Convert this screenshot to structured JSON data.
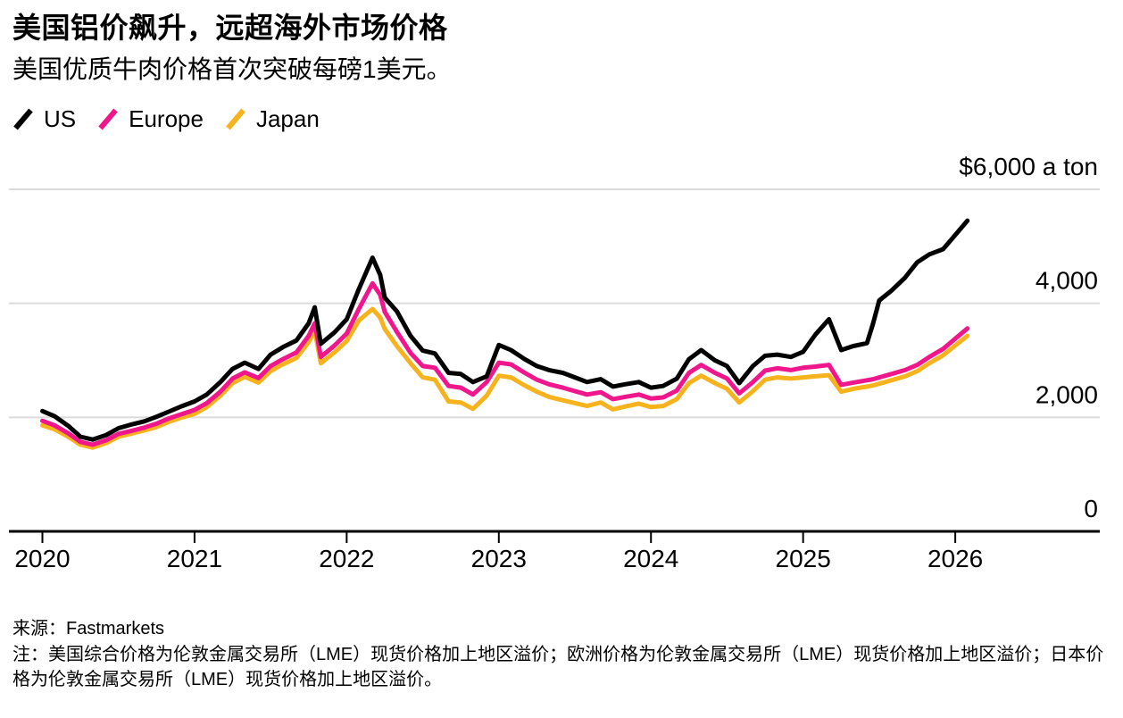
{
  "header": {
    "title": "美国铝价飙升，远超海外市场价格",
    "subtitle": "美国优质牛肉价格首次突破每磅1美元。"
  },
  "chart_data": {
    "type": "line",
    "title": "美国铝价飙升，远超海外市场价格",
    "subtitle": "美国优质牛肉价格首次突破每磅1美元。",
    "unit": "$ a ton",
    "grid": "horizontal",
    "legend_position": "top-left",
    "xlim": [
      2019.78,
      2026.95
    ],
    "ylim": [
      0,
      6000
    ],
    "x_ticks": [
      2020,
      2021,
      2022,
      2023,
      2024,
      2025,
      2026
    ],
    "y_ticks": [
      {
        "value": 0,
        "label": "0"
      },
      {
        "value": 2000,
        "label": "2,000"
      },
      {
        "value": 4000,
        "label": "4,000"
      },
      {
        "value": 6000,
        "label": "$6,000 a ton"
      }
    ],
    "x": [
      2020.0,
      2020.08,
      2020.17,
      2020.25,
      2020.33,
      2020.42,
      2020.5,
      2020.58,
      2020.67,
      2020.75,
      2020.83,
      2020.92,
      2021.0,
      2021.08,
      2021.17,
      2021.25,
      2021.33,
      2021.42,
      2021.5,
      2021.58,
      2021.67,
      2021.75,
      2021.79,
      2021.83,
      2021.92,
      2022.0,
      2022.08,
      2022.17,
      2022.22,
      2022.25,
      2022.33,
      2022.42,
      2022.5,
      2022.58,
      2022.67,
      2022.75,
      2022.83,
      2022.92,
      2023.0,
      2023.08,
      2023.17,
      2023.25,
      2023.33,
      2023.42,
      2023.5,
      2023.58,
      2023.67,
      2023.75,
      2023.83,
      2023.92,
      2024.0,
      2024.08,
      2024.17,
      2024.25,
      2024.33,
      2024.42,
      2024.5,
      2024.58,
      2024.67,
      2024.75,
      2024.83,
      2024.92,
      2025.0,
      2025.08,
      2025.17,
      2025.25,
      2025.33,
      2025.42,
      2025.46,
      2025.5,
      2025.58,
      2025.67,
      2025.75,
      2025.83,
      2025.92,
      2026.0,
      2026.08
    ],
    "series": [
      {
        "name": "US",
        "color": "#000000",
        "values": [
          2110,
          2020,
          1850,
          1660,
          1610,
          1690,
          1810,
          1870,
          1930,
          2010,
          2100,
          2200,
          2280,
          2400,
          2620,
          2850,
          2960,
          2850,
          3100,
          3230,
          3350,
          3650,
          3930,
          3290,
          3490,
          3720,
          4250,
          4800,
          4500,
          4100,
          3860,
          3430,
          3170,
          3120,
          2780,
          2760,
          2620,
          2720,
          3270,
          3180,
          3020,
          2900,
          2830,
          2780,
          2700,
          2620,
          2670,
          2540,
          2580,
          2620,
          2520,
          2550,
          2680,
          3020,
          3180,
          3000,
          2900,
          2600,
          2900,
          3080,
          3100,
          3060,
          3150,
          3450,
          3720,
          3180,
          3250,
          3300,
          3650,
          4050,
          4220,
          4450,
          4720,
          4860,
          4950,
          5200,
          5450
        ]
      },
      {
        "name": "Europe",
        "color": "#F0168C",
        "values": [
          1940,
          1860,
          1720,
          1570,
          1520,
          1600,
          1710,
          1760,
          1820,
          1890,
          1980,
          2060,
          2130,
          2250,
          2450,
          2680,
          2790,
          2690,
          2900,
          3020,
          3140,
          3430,
          3650,
          3060,
          3260,
          3470,
          3900,
          4350,
          4150,
          3850,
          3500,
          3130,
          2900,
          2870,
          2550,
          2520,
          2400,
          2620,
          2960,
          2930,
          2780,
          2660,
          2580,
          2520,
          2460,
          2400,
          2440,
          2320,
          2360,
          2400,
          2330,
          2350,
          2470,
          2780,
          2920,
          2780,
          2680,
          2420,
          2620,
          2820,
          2860,
          2830,
          2870,
          2890,
          2920,
          2570,
          2610,
          2650,
          2670,
          2700,
          2760,
          2830,
          2920,
          3060,
          3200,
          3380,
          3560
        ]
      },
      {
        "name": "Japan",
        "color": "#F6B31D",
        "values": [
          1860,
          1790,
          1660,
          1520,
          1470,
          1550,
          1660,
          1710,
          1770,
          1830,
          1920,
          2000,
          2060,
          2180,
          2380,
          2600,
          2710,
          2610,
          2810,
          2930,
          3040,
          3320,
          3520,
          2950,
          3140,
          3340,
          3700,
          3900,
          3750,
          3550,
          3250,
          2950,
          2700,
          2660,
          2280,
          2260,
          2150,
          2380,
          2730,
          2700,
          2560,
          2450,
          2360,
          2300,
          2250,
          2200,
          2260,
          2140,
          2190,
          2240,
          2180,
          2200,
          2320,
          2600,
          2730,
          2600,
          2500,
          2260,
          2460,
          2660,
          2700,
          2680,
          2700,
          2720,
          2740,
          2450,
          2500,
          2540,
          2560,
          2590,
          2650,
          2720,
          2810,
          2950,
          3090,
          3260,
          3430
        ]
      }
    ],
    "style": {
      "grid_color": "#DBDBDB",
      "axis_color": "#000000",
      "line_width": 5
    }
  },
  "footer": {
    "source": "来源：Fastmarkets",
    "note": "注：美国综合价格为伦敦金属交易所（LME）现货价格加上地区溢价；欧洲价格为伦敦金属交易所（LME）现货价格加上地区溢价；日本价格为伦敦金属交易所（LME）现货价格加上地区溢价。"
  }
}
